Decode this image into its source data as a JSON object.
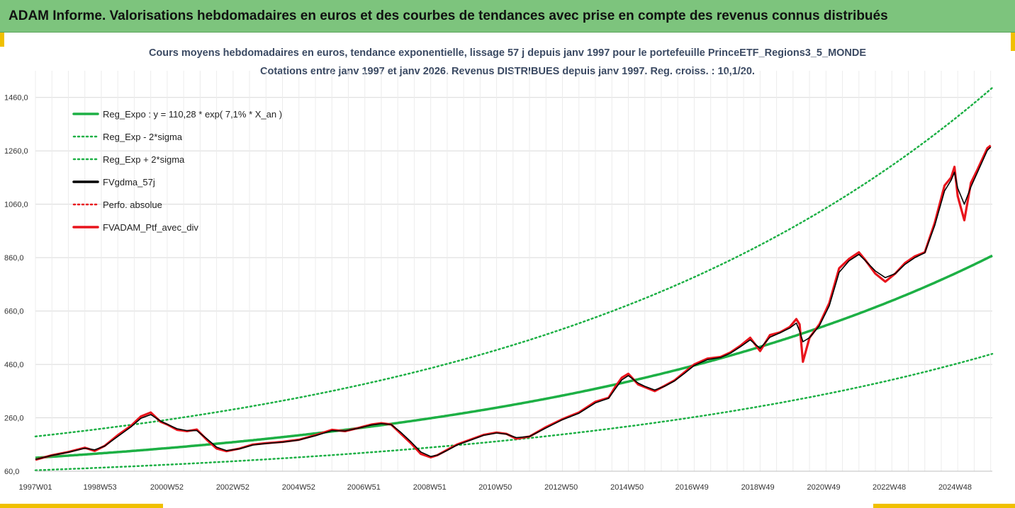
{
  "header": {
    "title": "ADAM Informe. Valorisations hebdomadaires en euros et des courbes de tendances avec prise en compte des revenus connus distribués"
  },
  "colors": {
    "header_bg": "#7dc47d",
    "accent": "#f0c000",
    "trend": "#1db045",
    "band": "#1db045",
    "smooth": "#000000",
    "price": "#e8141c"
  },
  "chart_data": {
    "type": "line",
    "title": "Cours moyens hebdomadaires  en euros, tendance exponentielle, lissage 57 j depuis janv 1997 pour le portefeuille PrinceETF_Regions3_5_MONDE",
    "subtitle": "Cotations entre janv 1997 et janv 2026. Revenus DISTRIBUES depuis janv 1997. Reg. croiss. : 10,1/20.",
    "xlabel": "",
    "ylabel": "",
    "xlim": [
      1997.0,
      2026.05
    ],
    "ylim": [
      60,
      1560
    ],
    "yticks": [
      60,
      260,
      460,
      660,
      860,
      1060,
      1260,
      1460
    ],
    "ytick_labels": [
      "60,0",
      "260,0",
      "460,0",
      "660,0",
      "860,0",
      "1060,0",
      "1260,0",
      "1460,0"
    ],
    "xticks": [
      1997.0,
      1998.96,
      2000.99,
      2002.99,
      2004.99,
      2006.97,
      2008.97,
      2010.96,
      2012.96,
      2014.96,
      2016.93,
      2018.93,
      2020.93,
      2022.92,
      2024.92
    ],
    "xtick_labels": [
      "1997W01",
      "1998W53",
      "2000W52",
      "2002W52",
      "2004W52",
      "2006W51",
      "2008W51",
      "2010W50",
      "2012W50",
      "2014W50",
      "2016W49",
      "2018W49",
      "2020W49",
      "2022W48",
      "2024W48"
    ],
    "grid": true,
    "legend_position": "top-left",
    "legend": [
      "Reg_Expo : y = 110,28 * exp( 7,1% *  X_an )",
      "Reg_Exp - 2*sigma",
      "Reg_Exp + 2*sigma",
      "FVgdma_57j",
      "Perfo. absolue",
      "FVADAM_Ptf_avec_div"
    ],
    "trend_model": {
      "a": 110.28,
      "rate": 0.071,
      "lower_factor": 0.576,
      "upper_factor": 1.725
    },
    "series": [
      {
        "name": "FVADAM_Ptf_avec_div",
        "x": [
          1997.0,
          1997.5,
          1998.0,
          1998.5,
          1998.8,
          1999.1,
          1999.5,
          1999.9,
          2000.2,
          2000.5,
          2000.8,
          2001.0,
          2001.3,
          2001.6,
          2001.9,
          2002.2,
          2002.5,
          2002.8,
          2003.2,
          2003.6,
          2004.0,
          2004.5,
          2005.0,
          2005.5,
          2006.0,
          2006.4,
          2006.8,
          2007.2,
          2007.5,
          2007.8,
          2008.1,
          2008.4,
          2008.7,
          2009.0,
          2009.2,
          2009.5,
          2009.8,
          2010.2,
          2010.6,
          2011.0,
          2011.3,
          2011.6,
          2012.0,
          2012.5,
          2013.0,
          2013.5,
          2014.0,
          2014.4,
          2014.6,
          2014.8,
          2015.0,
          2015.3,
          2015.5,
          2015.8,
          2016.1,
          2016.4,
          2016.7,
          2017.0,
          2017.4,
          2017.8,
          2018.1,
          2018.4,
          2018.7,
          2019.0,
          2019.3,
          2019.6,
          2019.9,
          2020.1,
          2020.2,
          2020.3,
          2020.5,
          2020.8,
          2021.1,
          2021.4,
          2021.7,
          2022.0,
          2022.2,
          2022.5,
          2022.8,
          2023.1,
          2023.4,
          2023.7,
          2024.0,
          2024.3,
          2024.6,
          2024.8,
          2024.9,
          2025.0,
          2025.2,
          2025.4,
          2025.6,
          2025.9,
          2026.0
        ],
        "values": [
          103,
          120,
          132,
          148,
          136,
          155,
          195,
          230,
          265,
          280,
          245,
          235,
          215,
          210,
          216,
          178,
          145,
          135,
          145,
          160,
          165,
          170,
          178,
          195,
          215,
          210,
          222,
          235,
          240,
          235,
          200,
          165,
          125,
          112,
          120,
          140,
          160,
          178,
          196,
          205,
          200,
          182,
          190,
          225,
          255,
          280,
          320,
          335,
          375,
          410,
          425,
          385,
          375,
          360,
          380,
          400,
          430,
          460,
          482,
          488,
          505,
          530,
          560,
          510,
          570,
          580,
          600,
          630,
          610,
          470,
          560,
          610,
          690,
          820,
          855,
          880,
          850,
          800,
          770,
          800,
          840,
          865,
          880,
          990,
          1130,
          1160,
          1200,
          1090,
          1000,
          1140,
          1190,
          1270,
          1280
        ]
      },
      {
        "name": "FVgdma_57j",
        "x": [
          1997.0,
          1997.5,
          1998.0,
          1998.5,
          1998.8,
          1999.1,
          1999.5,
          1999.9,
          2000.2,
          2000.5,
          2000.8,
          2001.0,
          2001.3,
          2001.6,
          2001.9,
          2002.2,
          2002.5,
          2002.8,
          2003.2,
          2003.6,
          2004.0,
          2004.5,
          2005.0,
          2005.5,
          2006.0,
          2006.4,
          2006.8,
          2007.2,
          2007.5,
          2007.8,
          2008.1,
          2008.4,
          2008.7,
          2009.0,
          2009.2,
          2009.5,
          2009.8,
          2010.2,
          2010.6,
          2011.0,
          2011.3,
          2011.6,
          2012.0,
          2012.5,
          2013.0,
          2013.5,
          2014.0,
          2014.4,
          2014.6,
          2014.8,
          2015.0,
          2015.3,
          2015.5,
          2015.8,
          2016.1,
          2016.4,
          2016.7,
          2017.0,
          2017.4,
          2017.8,
          2018.1,
          2018.4,
          2018.7,
          2019.0,
          2019.3,
          2019.6,
          2019.9,
          2020.1,
          2020.2,
          2020.3,
          2020.5,
          2020.8,
          2021.1,
          2021.4,
          2021.7,
          2022.0,
          2022.2,
          2022.5,
          2022.8,
          2023.1,
          2023.4,
          2023.7,
          2024.0,
          2024.3,
          2024.6,
          2024.8,
          2024.9,
          2025.0,
          2025.2,
          2025.4,
          2025.6,
          2025.9,
          2026.0
        ],
        "values": [
          104,
          119,
          131,
          146,
          140,
          154,
          190,
          226,
          258,
          272,
          248,
          236,
          219,
          212,
          212,
          182,
          150,
          137,
          144,
          158,
          164,
          169,
          177,
          193,
          212,
          211,
          221,
          233,
          238,
          235,
          205,
          170,
          132,
          115,
          120,
          138,
          158,
          176,
          194,
          203,
          199,
          186,
          190,
          222,
          253,
          277,
          316,
          333,
          368,
          402,
          418,
          390,
          378,
          364,
          378,
          398,
          426,
          456,
          478,
          486,
          502,
          526,
          552,
          520,
          562,
          578,
          596,
          615,
          585,
          545,
          560,
          605,
          680,
          805,
          848,
          872,
          848,
          810,
          785,
          800,
          835,
          860,
          878,
          980,
          1110,
          1150,
          1180,
          1120,
          1060,
          1125,
          1180,
          1262,
          1274
        ]
      }
    ]
  }
}
